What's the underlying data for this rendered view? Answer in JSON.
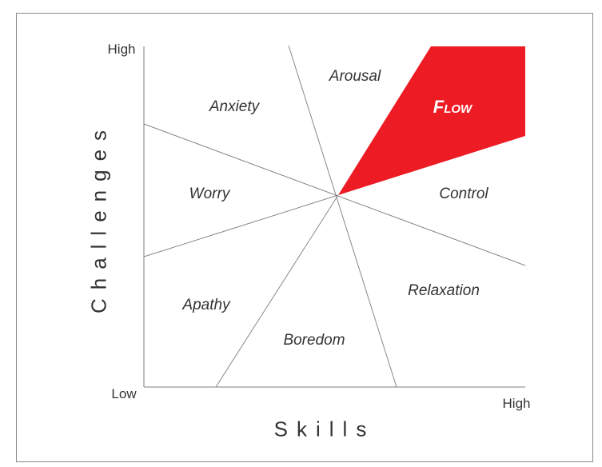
{
  "axes": {
    "y_label": "Challenges",
    "x_label": "Skills",
    "y_high": "High",
    "x_high": "High",
    "origin": "Low"
  },
  "regions": {
    "flow": "Flow",
    "arousal": "Arousal",
    "anxiety": "Anxiety",
    "worry": "Worry",
    "apathy": "Apathy",
    "boredom": "Boredom",
    "relaxation": "Relaxation",
    "control": "Control"
  },
  "colors": {
    "flow": "#ed1c24",
    "lines": "#888888"
  }
}
